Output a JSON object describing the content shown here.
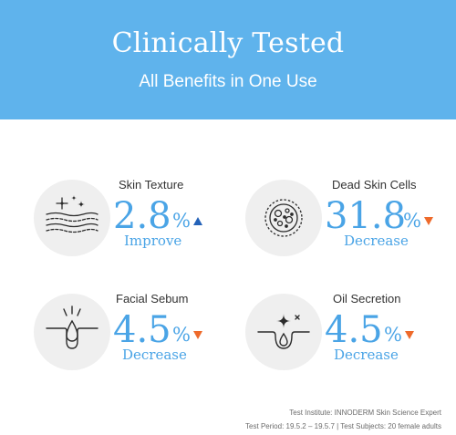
{
  "header": {
    "title": "Clinically Tested",
    "subtitle": "All Benefits in One Use"
  },
  "colors": {
    "banner": "#5fb3ec",
    "value": "#4aa4e6",
    "arrow_up": "#2462b8",
    "arrow_down": "#ee6a2b",
    "icon_disc": "#efefef"
  },
  "stats": [
    {
      "label": "Skin Texture",
      "value": "2.8",
      "unit": "%",
      "effect": "Improve",
      "direction": "up",
      "icon": "sparkle-texture-icon"
    },
    {
      "label": "Dead Skin Cells",
      "value": "31.8",
      "unit": "%",
      "effect": "Decrease",
      "direction": "down",
      "icon": "skin-cell-icon"
    },
    {
      "label": "Facial Sebum",
      "value": "4.5",
      "unit": "%",
      "effect": "Decrease",
      "direction": "down",
      "icon": "sebum-drop-icon"
    },
    {
      "label": "Oil Secretion",
      "value": "4.5",
      "unit": "%",
      "effect": "Decrease",
      "direction": "down",
      "icon": "oil-pore-icon"
    }
  ],
  "footer": {
    "institute": "Test Institute: INNODERM Skin Science Expert",
    "period": "Test Period: 19.5.2 – 19.5.7 | Test Subjects: 20 female adults"
  }
}
